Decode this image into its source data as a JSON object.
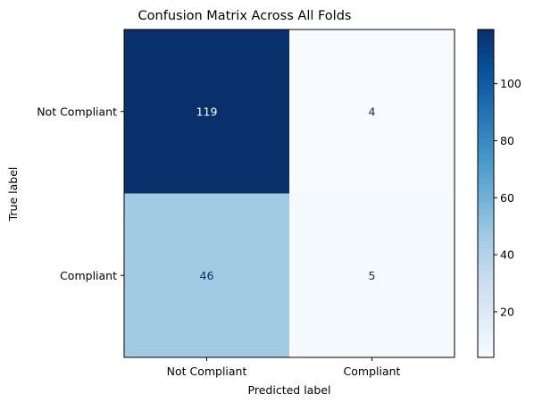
{
  "chart_data": {
    "type": "heatmap",
    "title": "Confusion Matrix Across All Folds",
    "xlabel": "Predicted label",
    "ylabel": "True label",
    "x_categories": [
      "Not Compliant",
      "Compliant"
    ],
    "y_categories": [
      "Not Compliant",
      "Compliant"
    ],
    "values": [
      [
        119,
        4
      ],
      [
        46,
        5
      ]
    ],
    "colormap": "Blues",
    "colorbar": {
      "range": [
        4,
        119
      ],
      "ticks": [
        20,
        40,
        60,
        80,
        100
      ]
    },
    "colors": {
      "low": "#f7fbff",
      "high": "#08306b",
      "text_on_dark": "#ffffff",
      "text_on_light": "#08306b"
    },
    "grid": false
  }
}
